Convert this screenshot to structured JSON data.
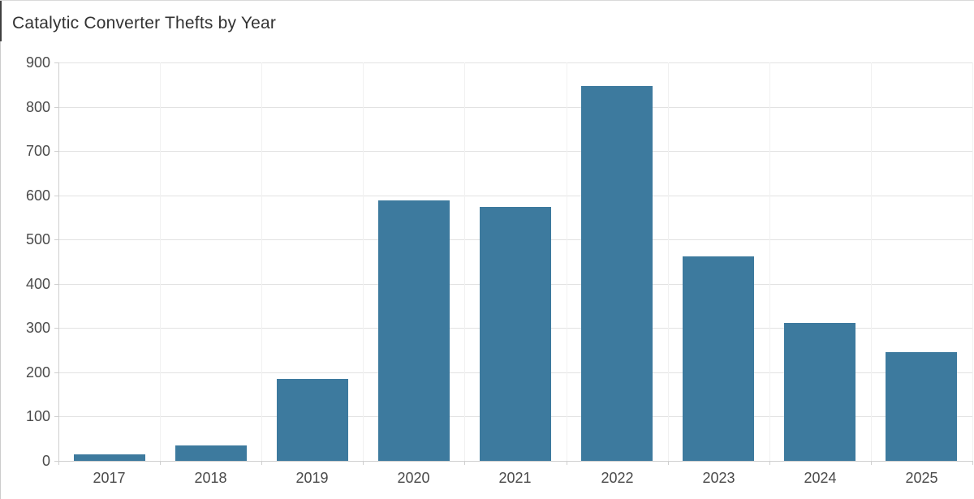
{
  "chart_data": {
    "type": "bar",
    "title": "Catalytic Converter Thefts by Year",
    "categories": [
      "2017",
      "2018",
      "2019",
      "2020",
      "2021",
      "2022",
      "2023",
      "2024",
      "2025"
    ],
    "values": [
      14,
      34,
      186,
      588,
      573,
      846,
      462,
      312,
      246
    ],
    "xlabel": "",
    "ylabel": "",
    "ylim": [
      0,
      900
    ],
    "yticks": [
      0,
      100,
      200,
      300,
      400,
      500,
      600,
      700,
      800,
      900
    ],
    "grid": "on",
    "legend": "none",
    "bar_color": "#3d7a9e"
  },
  "theme": {
    "background": "#ffffff",
    "grid_major": "#e2e2e2",
    "grid_minor": "#f1f1f1",
    "axis": "#cfcfcf",
    "tick_text": "#4a4a4a",
    "title_text": "#323232"
  }
}
